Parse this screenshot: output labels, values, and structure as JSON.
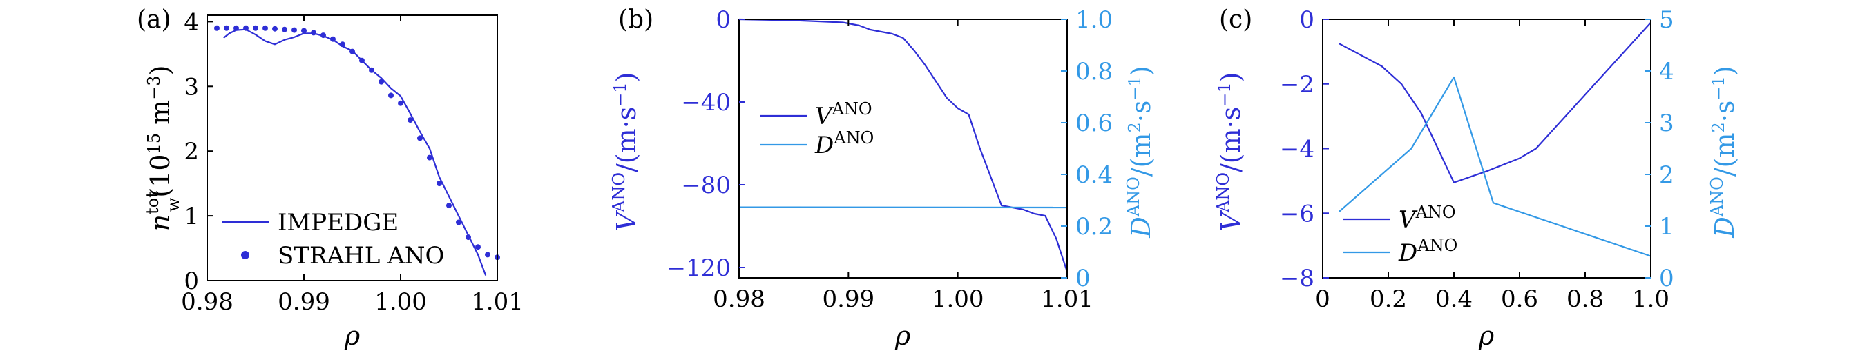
{
  "chart_data": [
    {
      "type": "line",
      "panel_label": "(a)",
      "xlabel": "ρ",
      "ylabel": {
        "main": "n",
        "sub": "w",
        "sup": "tot",
        "unit": "(10",
        "unit_sup": "15",
        "unit_end": " m",
        "unit_end_sup": "−3",
        "close": ")"
      },
      "xlim": [
        0.98,
        1.01
      ],
      "ylim": [
        0,
        4.1
      ],
      "xticks": [
        0.98,
        0.99,
        1.0,
        1.01
      ],
      "xtick_labels": [
        "0.98",
        "0.99",
        "1.00",
        "1.01"
      ],
      "yticks": [
        0,
        1,
        2,
        3,
        4
      ],
      "ytick_labels": [
        "0",
        "1",
        "2",
        "3",
        "4"
      ],
      "legend_placement": "lower-left",
      "series": [
        {
          "name": "IMPEDGE",
          "style": "line",
          "color": "#2e2ed6",
          "x": [
            0.9817,
            0.9823,
            0.983,
            0.984,
            0.985,
            0.986,
            0.987,
            0.988,
            0.989,
            0.99,
            0.991,
            0.992,
            0.993,
            0.994,
            0.995,
            0.996,
            0.997,
            0.998,
            0.999,
            1.0,
            1.001,
            1.002,
            1.003,
            1.004,
            1.005,
            1.006,
            1.007,
            1.008,
            1.0088
          ],
          "y": [
            3.75,
            3.82,
            3.87,
            3.88,
            3.8,
            3.7,
            3.65,
            3.72,
            3.76,
            3.82,
            3.82,
            3.78,
            3.72,
            3.62,
            3.55,
            3.4,
            3.25,
            3.13,
            2.97,
            2.85,
            2.58,
            2.3,
            2.04,
            1.6,
            1.3,
            1.0,
            0.7,
            0.4,
            0.08
          ]
        },
        {
          "name": "STRAHL ANO",
          "style": "dots",
          "color": "#2e2ed6",
          "x": [
            0.981,
            0.982,
            0.983,
            0.984,
            0.985,
            0.986,
            0.987,
            0.988,
            0.989,
            0.99,
            0.991,
            0.992,
            0.993,
            0.994,
            0.995,
            0.996,
            0.997,
            0.998,
            0.999,
            1.0,
            1.001,
            1.002,
            1.003,
            1.004,
            1.005,
            1.006,
            1.007,
            1.008,
            1.009,
            1.01
          ],
          "y": [
            3.9,
            3.9,
            3.9,
            3.9,
            3.9,
            3.9,
            3.89,
            3.88,
            3.87,
            3.86,
            3.83,
            3.79,
            3.73,
            3.65,
            3.54,
            3.4,
            3.25,
            3.07,
            2.86,
            2.74,
            2.48,
            2.2,
            1.9,
            1.5,
            1.16,
            0.9,
            0.67,
            0.52,
            0.4,
            0.36
          ]
        }
      ]
    },
    {
      "type": "line",
      "panel_label": "(b)",
      "xlabel": "ρ",
      "ylabel_left": {
        "main": "V",
        "sup": "ANO",
        "unit": "/(m·s",
        "unit_sup": "−1",
        "close": ")"
      },
      "ylabel_right": {
        "main": "D",
        "sup": "ANO",
        "unit": "/(m",
        "unit_sup": "2",
        "unit_mid": "·s",
        "unit_mid_sup": "−1",
        "close": ")"
      },
      "xlim": [
        0.98,
        1.01
      ],
      "ylim_left": [
        -125,
        0
      ],
      "ylim_right": [
        0,
        1.0
      ],
      "xticks": [
        0.98,
        0.99,
        1.0,
        1.01
      ],
      "xtick_labels": [
        "0.98",
        "0.99",
        "1.00",
        "1.01"
      ],
      "yticks_left": [
        0,
        -40,
        -80,
        -120
      ],
      "ytick_labels_left": [
        "0",
        "−40",
        "−80",
        "−120"
      ],
      "yticks_right": [
        0,
        0.2,
        0.4,
        0.6,
        0.8,
        1.0
      ],
      "ytick_labels_right": [
        "0",
        "0.2",
        "0.4",
        "0.6",
        "0.8",
        "1.0"
      ],
      "legend_placement": "upper-left",
      "series": [
        {
          "name": "V",
          "name_sup": "ANO",
          "axis": "left",
          "color": "#2e2ed6",
          "x": [
            0.98,
            0.985,
            0.9895,
            0.991,
            0.992,
            0.993,
            0.994,
            0.995,
            0.996,
            0.997,
            0.998,
            0.999,
            1.0,
            1.001,
            1.002,
            1.003,
            1.004,
            1.005,
            1.006,
            1.007,
            1.008,
            1.009,
            1.01
          ],
          "y": [
            0,
            -0.5,
            -1.5,
            -3,
            -5,
            -6,
            -7,
            -9,
            -15,
            -22,
            -30,
            -38,
            -43,
            -46,
            -62,
            -76,
            -90,
            -91,
            -92,
            -94,
            -95,
            -106,
            -122
          ]
        },
        {
          "name": "D",
          "name_sup": "ANO",
          "axis": "right",
          "color": "#3399e6",
          "x": [
            0.98,
            1.01
          ],
          "y": [
            0.273,
            0.272
          ]
        }
      ]
    },
    {
      "type": "line",
      "panel_label": "(c)",
      "xlabel": "ρ",
      "ylabel_left": {
        "main": "V",
        "sup": "ANO",
        "unit": "/(m·s",
        "unit_sup": "−1",
        "close": ")"
      },
      "ylabel_right": {
        "main": "D",
        "sup": "ANO",
        "unit": "/(m",
        "unit_sup": "2",
        "unit_mid": "·s",
        "unit_mid_sup": "−1",
        "close": ")"
      },
      "xlim": [
        0,
        1.0
      ],
      "ylim_left": [
        -8,
        0
      ],
      "ylim_right": [
        0,
        5
      ],
      "xticks": [
        0,
        0.2,
        0.4,
        0.6,
        0.8,
        1.0
      ],
      "xtick_labels": [
        "0",
        "0.2",
        "0.4",
        "0.6",
        "0.8",
        "1.0"
      ],
      "yticks_left": [
        0,
        -2,
        -4,
        -6,
        -8
      ],
      "ytick_labels_left": [
        "0",
        "−2",
        "−4",
        "−6",
        "−8"
      ],
      "yticks_right": [
        0,
        1,
        2,
        3,
        4,
        5
      ],
      "ytick_labels_right": [
        "0",
        "1",
        "2",
        "3",
        "4",
        "5"
      ],
      "legend_placement": "lower-left",
      "series": [
        {
          "name": "V",
          "name_sup": "ANO",
          "axis": "left",
          "color": "#2e2ed6",
          "x": [
            0.05,
            0.18,
            0.24,
            0.3,
            0.4,
            0.5,
            0.6,
            0.65,
            1.0
          ],
          "y": [
            -0.75,
            -1.45,
            -2.0,
            -2.9,
            -5.05,
            -4.7,
            -4.3,
            -4.0,
            -0.1
          ]
        },
        {
          "name": "D",
          "name_sup": "ANO",
          "axis": "right",
          "color": "#3399e6",
          "x": [
            0.05,
            0.27,
            0.4,
            0.52,
            1.0
          ],
          "y": [
            1.28,
            2.5,
            3.88,
            1.45,
            0.42
          ]
        }
      ]
    }
  ]
}
